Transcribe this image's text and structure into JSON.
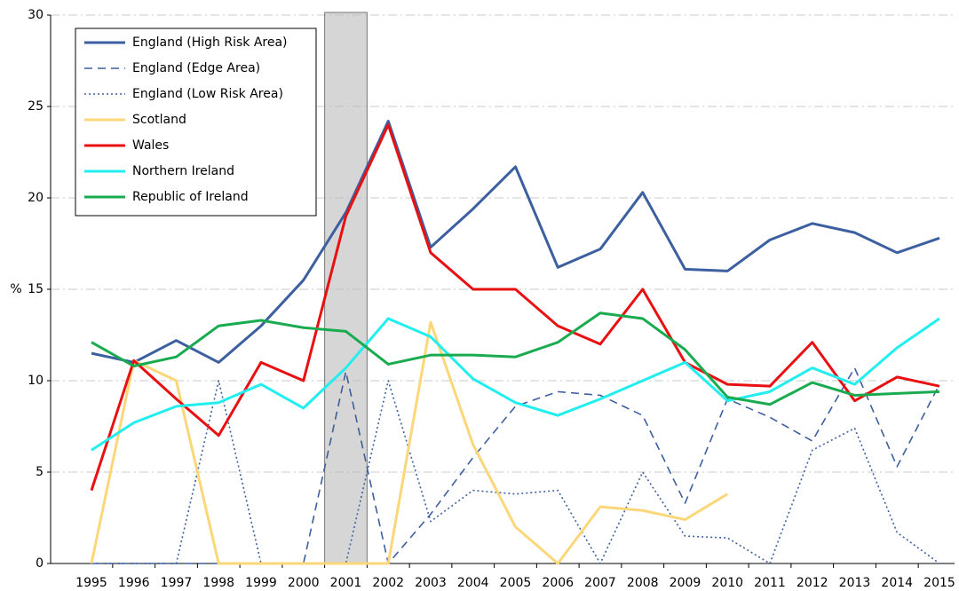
{
  "chart_data": {
    "type": "line",
    "ylabel": "%",
    "categories": [
      "1995",
      "1996",
      "1997",
      "1998",
      "1999",
      "2000",
      "2001",
      "2002",
      "2003",
      "2004",
      "2005",
      "2006",
      "2007",
      "2008",
      "2009",
      "2010",
      "2011",
      "2012",
      "2013",
      "2014",
      "2015"
    ],
    "highlight": "2001",
    "ylim": [
      0,
      30
    ],
    "yticks": [
      0,
      5,
      10,
      15,
      20,
      25,
      30
    ],
    "grid": true,
    "legend": "upper left",
    "series": [
      {
        "name": "England (High Risk Area)",
        "color": "#3c5fa0",
        "dash": "solid",
        "values": [
          11.5,
          11.0,
          12.2,
          11.0,
          13.0,
          15.5,
          19.2,
          24.2,
          17.3,
          19.4,
          21.7,
          16.2,
          17.2,
          20.3,
          16.1,
          16.0,
          17.7,
          18.6,
          18.1,
          17.0,
          17.8
        ]
      },
      {
        "name": "England (Edge Area)",
        "color": "#3c5fa0",
        "dash": "dashed",
        "values": [
          0,
          0,
          0,
          0,
          0,
          0,
          10.5,
          0,
          2.7,
          5.8,
          8.6,
          9.4,
          9.2,
          8.1,
          3.3,
          9.0,
          8.0,
          6.7,
          10.7,
          5.3,
          9.8
        ]
      },
      {
        "name": "England (Low Risk Area)",
        "color": "#3c5fa0",
        "dash": "dotted",
        "values": [
          0,
          0,
          0,
          10.0,
          0,
          0,
          0,
          10.0,
          2.3,
          4.0,
          3.8,
          4.0,
          0,
          5.0,
          1.5,
          1.4,
          0,
          6.2,
          7.4,
          1.7,
          0
        ]
      },
      {
        "name": "Scotland",
        "color": "#fcd77a",
        "dash": "solid",
        "values": [
          0,
          11.1,
          10.0,
          0,
          0,
          0,
          0,
          0,
          13.2,
          6.5,
          2.0,
          0,
          3.1,
          2.9,
          2.4,
          3.8,
          null,
          null,
          null,
          null,
          null
        ]
      },
      {
        "name": "Wales",
        "color": "#e81010",
        "dash": "solid",
        "values": [
          4.0,
          11.1,
          9.0,
          7.0,
          11.0,
          10.0,
          19.0,
          24.0,
          17.0,
          15.0,
          15.0,
          13.0,
          12.0,
          15.0,
          11.0,
          9.8,
          9.7,
          12.1,
          8.9,
          10.2,
          9.7
        ]
      },
      {
        "name": "Northern Ireland",
        "color": "#22eef0",
        "dash": "solid",
        "values": [
          6.2,
          7.7,
          8.6,
          8.8,
          9.8,
          8.5,
          10.7,
          13.4,
          12.4,
          10.1,
          8.8,
          8.1,
          9.0,
          10.0,
          11.0,
          8.9,
          9.4,
          10.7,
          9.8,
          11.8,
          13.4
        ]
      },
      {
        "name": "Republic of Ireland",
        "color": "#1aab50",
        "dash": "solid",
        "values": [
          12.1,
          10.8,
          11.3,
          13.0,
          13.3,
          12.9,
          12.7,
          10.9,
          11.4,
          11.4,
          11.3,
          12.1,
          13.7,
          13.4,
          11.7,
          9.1,
          8.7,
          9.9,
          9.2,
          9.3,
          9.4
        ]
      }
    ]
  }
}
